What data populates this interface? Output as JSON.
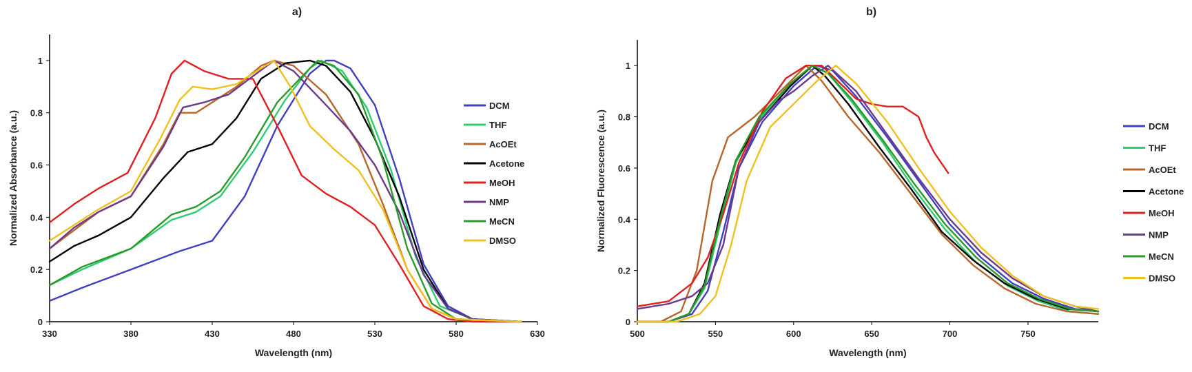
{
  "chart_data": [
    {
      "type": "line",
      "title": "a)",
      "xlabel": "Wavelength (nm)",
      "ylabel": "Normalized Absorbance (a.u.)",
      "xlim": [
        330,
        630
      ],
      "ylim": [
        0,
        1.1
      ],
      "xticks": [
        "330",
        "380",
        "430",
        "480",
        "530",
        "580",
        "630"
      ],
      "yticks": [
        "0",
        "0.2",
        "0.4",
        "0.6",
        "0.8",
        "1"
      ],
      "legend_position": "right",
      "series": [
        {
          "name": "DCM",
          "color": "#3f3fbf",
          "x": [
            330,
            350,
            380,
            410,
            430,
            450,
            470,
            490,
            500,
            505,
            515,
            530,
            545,
            560,
            575,
            590,
            620
          ],
          "y": [
            0.08,
            0.13,
            0.2,
            0.27,
            0.31,
            0.48,
            0.75,
            0.95,
            1.0,
            1.0,
            0.97,
            0.83,
            0.55,
            0.22,
            0.06,
            0.01,
            0.0
          ]
        },
        {
          "name": "THF",
          "color": "#2ecc71",
          "x": [
            330,
            350,
            380,
            405,
            420,
            435,
            455,
            475,
            490,
            497,
            510,
            525,
            540,
            555,
            570,
            590,
            620
          ],
          "y": [
            0.14,
            0.2,
            0.28,
            0.39,
            0.42,
            0.48,
            0.65,
            0.85,
            0.97,
            1.0,
            0.96,
            0.82,
            0.58,
            0.25,
            0.06,
            0.01,
            0.0
          ]
        },
        {
          "name": "AcOEt",
          "color": "#b8652a",
          "x": [
            330,
            345,
            360,
            380,
            400,
            410,
            420,
            430,
            445,
            460,
            468,
            480,
            500,
            520,
            535,
            550,
            565,
            580,
            620
          ],
          "y": [
            0.28,
            0.35,
            0.42,
            0.48,
            0.68,
            0.8,
            0.8,
            0.84,
            0.9,
            0.98,
            1.0,
            0.98,
            0.87,
            0.68,
            0.45,
            0.2,
            0.05,
            0.01,
            0.0
          ]
        },
        {
          "name": "Acetone",
          "color": "#000000",
          "x": [
            330,
            345,
            360,
            380,
            400,
            415,
            430,
            445,
            460,
            475,
            490,
            500,
            515,
            530,
            545,
            560,
            575,
            590,
            620
          ],
          "y": [
            0.23,
            0.29,
            0.33,
            0.4,
            0.55,
            0.65,
            0.68,
            0.78,
            0.93,
            0.99,
            1.0,
            0.98,
            0.88,
            0.7,
            0.48,
            0.2,
            0.05,
            0.01,
            0.0
          ]
        },
        {
          "name": "MeOH",
          "color": "#e02020",
          "x": [
            330,
            345,
            360,
            378,
            395,
            405,
            413,
            425,
            440,
            455,
            470,
            485,
            500,
            515,
            530,
            545,
            560,
            575,
            590,
            620
          ],
          "y": [
            0.38,
            0.45,
            0.51,
            0.57,
            0.78,
            0.95,
            1.0,
            0.96,
            0.93,
            0.93,
            0.75,
            0.56,
            0.49,
            0.44,
            0.37,
            0.22,
            0.06,
            0.01,
            0.0,
            0.0
          ]
        },
        {
          "name": "NMP",
          "color": "#6a3a8c",
          "x": [
            330,
            345,
            360,
            380,
            400,
            412,
            425,
            440,
            455,
            468,
            480,
            500,
            515,
            530,
            545,
            560,
            575,
            590,
            620
          ],
          "y": [
            0.28,
            0.36,
            0.42,
            0.48,
            0.67,
            0.82,
            0.84,
            0.87,
            0.94,
            1.0,
            0.96,
            0.83,
            0.73,
            0.6,
            0.42,
            0.18,
            0.05,
            0.01,
            0.0
          ]
        },
        {
          "name": "MeCN",
          "color": "#2a9a2a",
          "x": [
            330,
            350,
            380,
            405,
            420,
            435,
            450,
            470,
            490,
            495,
            505,
            520,
            535,
            550,
            565,
            580,
            620
          ],
          "y": [
            0.14,
            0.21,
            0.28,
            0.41,
            0.44,
            0.5,
            0.63,
            0.84,
            0.97,
            1.0,
            0.98,
            0.87,
            0.62,
            0.28,
            0.07,
            0.01,
            0.0
          ]
        },
        {
          "name": "DMSO",
          "color": "#f0c020",
          "x": [
            330,
            345,
            360,
            380,
            398,
            410,
            418,
            430,
            445,
            460,
            468,
            478,
            490,
            505,
            520,
            535,
            550,
            565,
            580,
            620
          ],
          "y": [
            0.31,
            0.37,
            0.43,
            0.5,
            0.7,
            0.85,
            0.9,
            0.89,
            0.91,
            0.97,
            1.0,
            0.9,
            0.75,
            0.66,
            0.58,
            0.43,
            0.2,
            0.05,
            0.01,
            0.0
          ]
        }
      ]
    },
    {
      "type": "line",
      "title": "b)",
      "xlabel": "Wavelength (nm)",
      "ylabel": "Normalized Fluorescence (a.u.)",
      "xlim": [
        500,
        795
      ],
      "ylim": [
        0,
        1.1
      ],
      "xticks": [
        "500",
        "550",
        "600",
        "650",
        "700",
        "750"
      ],
      "yticks": [
        "0",
        "0.2",
        "0.4",
        "0.6",
        "0.8",
        "1"
      ],
      "legend_position": "right",
      "series": [
        {
          "name": "DCM",
          "color": "#3f3fbf",
          "x": [
            500,
            520,
            535,
            545,
            555,
            565,
            580,
            600,
            615,
            625,
            640,
            660,
            680,
            700,
            720,
            740,
            760,
            780,
            795
          ],
          "y": [
            0.0,
            0.0,
            0.03,
            0.12,
            0.35,
            0.6,
            0.78,
            0.92,
            1.0,
            0.98,
            0.88,
            0.72,
            0.55,
            0.38,
            0.25,
            0.15,
            0.09,
            0.05,
            0.04
          ]
        },
        {
          "name": "THF",
          "color": "#2ecc71",
          "x": [
            500,
            520,
            533,
            543,
            553,
            563,
            578,
            598,
            612,
            622,
            637,
            657,
            677,
            697,
            717,
            737,
            757,
            777,
            795
          ],
          "y": [
            0.0,
            0.0,
            0.03,
            0.13,
            0.38,
            0.62,
            0.79,
            0.93,
            1.0,
            0.97,
            0.86,
            0.7,
            0.52,
            0.36,
            0.23,
            0.14,
            0.08,
            0.04,
            0.03
          ]
        },
        {
          "name": "AcOEt",
          "color": "#b8652a",
          "x": [
            500,
            515,
            528,
            538,
            548,
            558,
            575,
            595,
            608,
            618,
            635,
            655,
            675,
            695,
            715,
            735,
            755,
            775,
            795
          ],
          "y": [
            0.0,
            0.0,
            0.04,
            0.2,
            0.55,
            0.72,
            0.8,
            0.92,
            1.0,
            0.94,
            0.8,
            0.66,
            0.5,
            0.34,
            0.22,
            0.13,
            0.07,
            0.04,
            0.03
          ]
        },
        {
          "name": "Acetone",
          "color": "#000000",
          "x": [
            500,
            520,
            533,
            543,
            553,
            563,
            578,
            598,
            612,
            620,
            635,
            655,
            675,
            695,
            715,
            735,
            755,
            775,
            795
          ],
          "y": [
            0.0,
            0.0,
            0.03,
            0.15,
            0.42,
            0.63,
            0.78,
            0.92,
            1.0,
            0.96,
            0.85,
            0.68,
            0.52,
            0.35,
            0.24,
            0.15,
            0.09,
            0.05,
            0.04
          ]
        },
        {
          "name": "MeOH",
          "color": "#e02020",
          "x": [
            500,
            520,
            535,
            545,
            555,
            565,
            580,
            595,
            608,
            618,
            630,
            640,
            650,
            660,
            670,
            680,
            685,
            690,
            699
          ],
          "y": [
            0.06,
            0.08,
            0.15,
            0.25,
            0.42,
            0.62,
            0.82,
            0.95,
            1.0,
            1.0,
            0.93,
            0.87,
            0.85,
            0.84,
            0.84,
            0.8,
            0.72,
            0.66,
            0.58
          ]
        },
        {
          "name": "NMP",
          "color": "#6a3a8c",
          "x": [
            500,
            520,
            535,
            545,
            555,
            565,
            578,
            590,
            600,
            612,
            622,
            640,
            660,
            680,
            700,
            720,
            740,
            760,
            780,
            795
          ],
          "y": [
            0.05,
            0.07,
            0.1,
            0.15,
            0.3,
            0.6,
            0.78,
            0.86,
            0.9,
            0.96,
            1.0,
            0.9,
            0.73,
            0.56,
            0.4,
            0.27,
            0.17,
            0.1,
            0.06,
            0.04
          ]
        },
        {
          "name": "MeCN",
          "color": "#2a9a2a",
          "x": [
            500,
            520,
            533,
            543,
            553,
            563,
            578,
            598,
            612,
            622,
            637,
            657,
            677,
            697,
            717,
            737,
            757,
            777,
            795
          ],
          "y": [
            0.0,
            0.0,
            0.03,
            0.14,
            0.4,
            0.63,
            0.8,
            0.93,
            1.0,
            0.97,
            0.87,
            0.71,
            0.54,
            0.38,
            0.25,
            0.15,
            0.09,
            0.05,
            0.04
          ]
        },
        {
          "name": "DMSO",
          "color": "#f0c020",
          "x": [
            500,
            525,
            540,
            550,
            560,
            570,
            585,
            600,
            615,
            627,
            640,
            660,
            680,
            700,
            720,
            740,
            760,
            780,
            795
          ],
          "y": [
            0.0,
            0.0,
            0.03,
            0.1,
            0.3,
            0.55,
            0.76,
            0.85,
            0.94,
            1.0,
            0.93,
            0.78,
            0.6,
            0.43,
            0.29,
            0.18,
            0.1,
            0.06,
            0.05
          ]
        }
      ]
    }
  ]
}
